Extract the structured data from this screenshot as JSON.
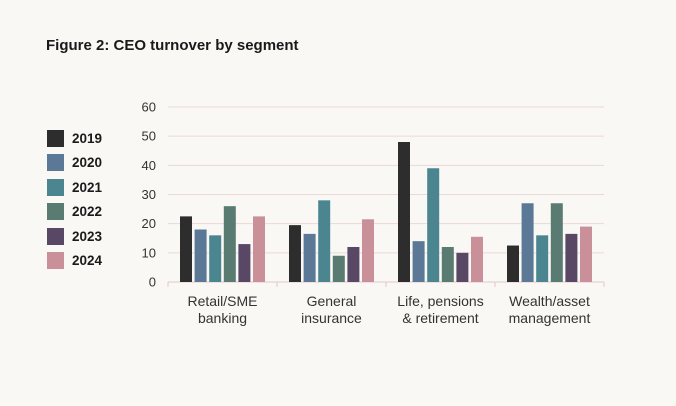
{
  "figure_title": "Figure 2: CEO turnover by segment",
  "chart_data": {
    "type": "bar",
    "title": "Figure 2: CEO turnover by segment",
    "xlabel": "",
    "ylabel": "",
    "ylim": [
      0,
      60
    ],
    "yticks": [
      0,
      10,
      20,
      30,
      40,
      50,
      60
    ],
    "grid": true,
    "legend_position": "left",
    "categories": [
      [
        "Retail/SME",
        "banking"
      ],
      [
        "General",
        "insurance"
      ],
      [
        "Life, pensions",
        "& retirement"
      ],
      [
        "Wealth/asset",
        "management"
      ]
    ],
    "series": [
      {
        "name": "2019",
        "color": "#2d2d2d",
        "values": [
          22.5,
          19.5,
          48,
          12.5
        ]
      },
      {
        "name": "2020",
        "color": "#5b7896",
        "values": [
          18,
          16.5,
          14,
          27
        ]
      },
      {
        "name": "2021",
        "color": "#4a8590",
        "values": [
          16,
          28,
          39,
          16
        ]
      },
      {
        "name": "2022",
        "color": "#5a7b72",
        "values": [
          26,
          9,
          12,
          27
        ]
      },
      {
        "name": "2023",
        "color": "#584866",
        "values": [
          13,
          12,
          10,
          16.5
        ]
      },
      {
        "name": "2024",
        "color": "#c99099",
        "values": [
          22.5,
          21.5,
          15.5,
          19
        ]
      }
    ]
  }
}
